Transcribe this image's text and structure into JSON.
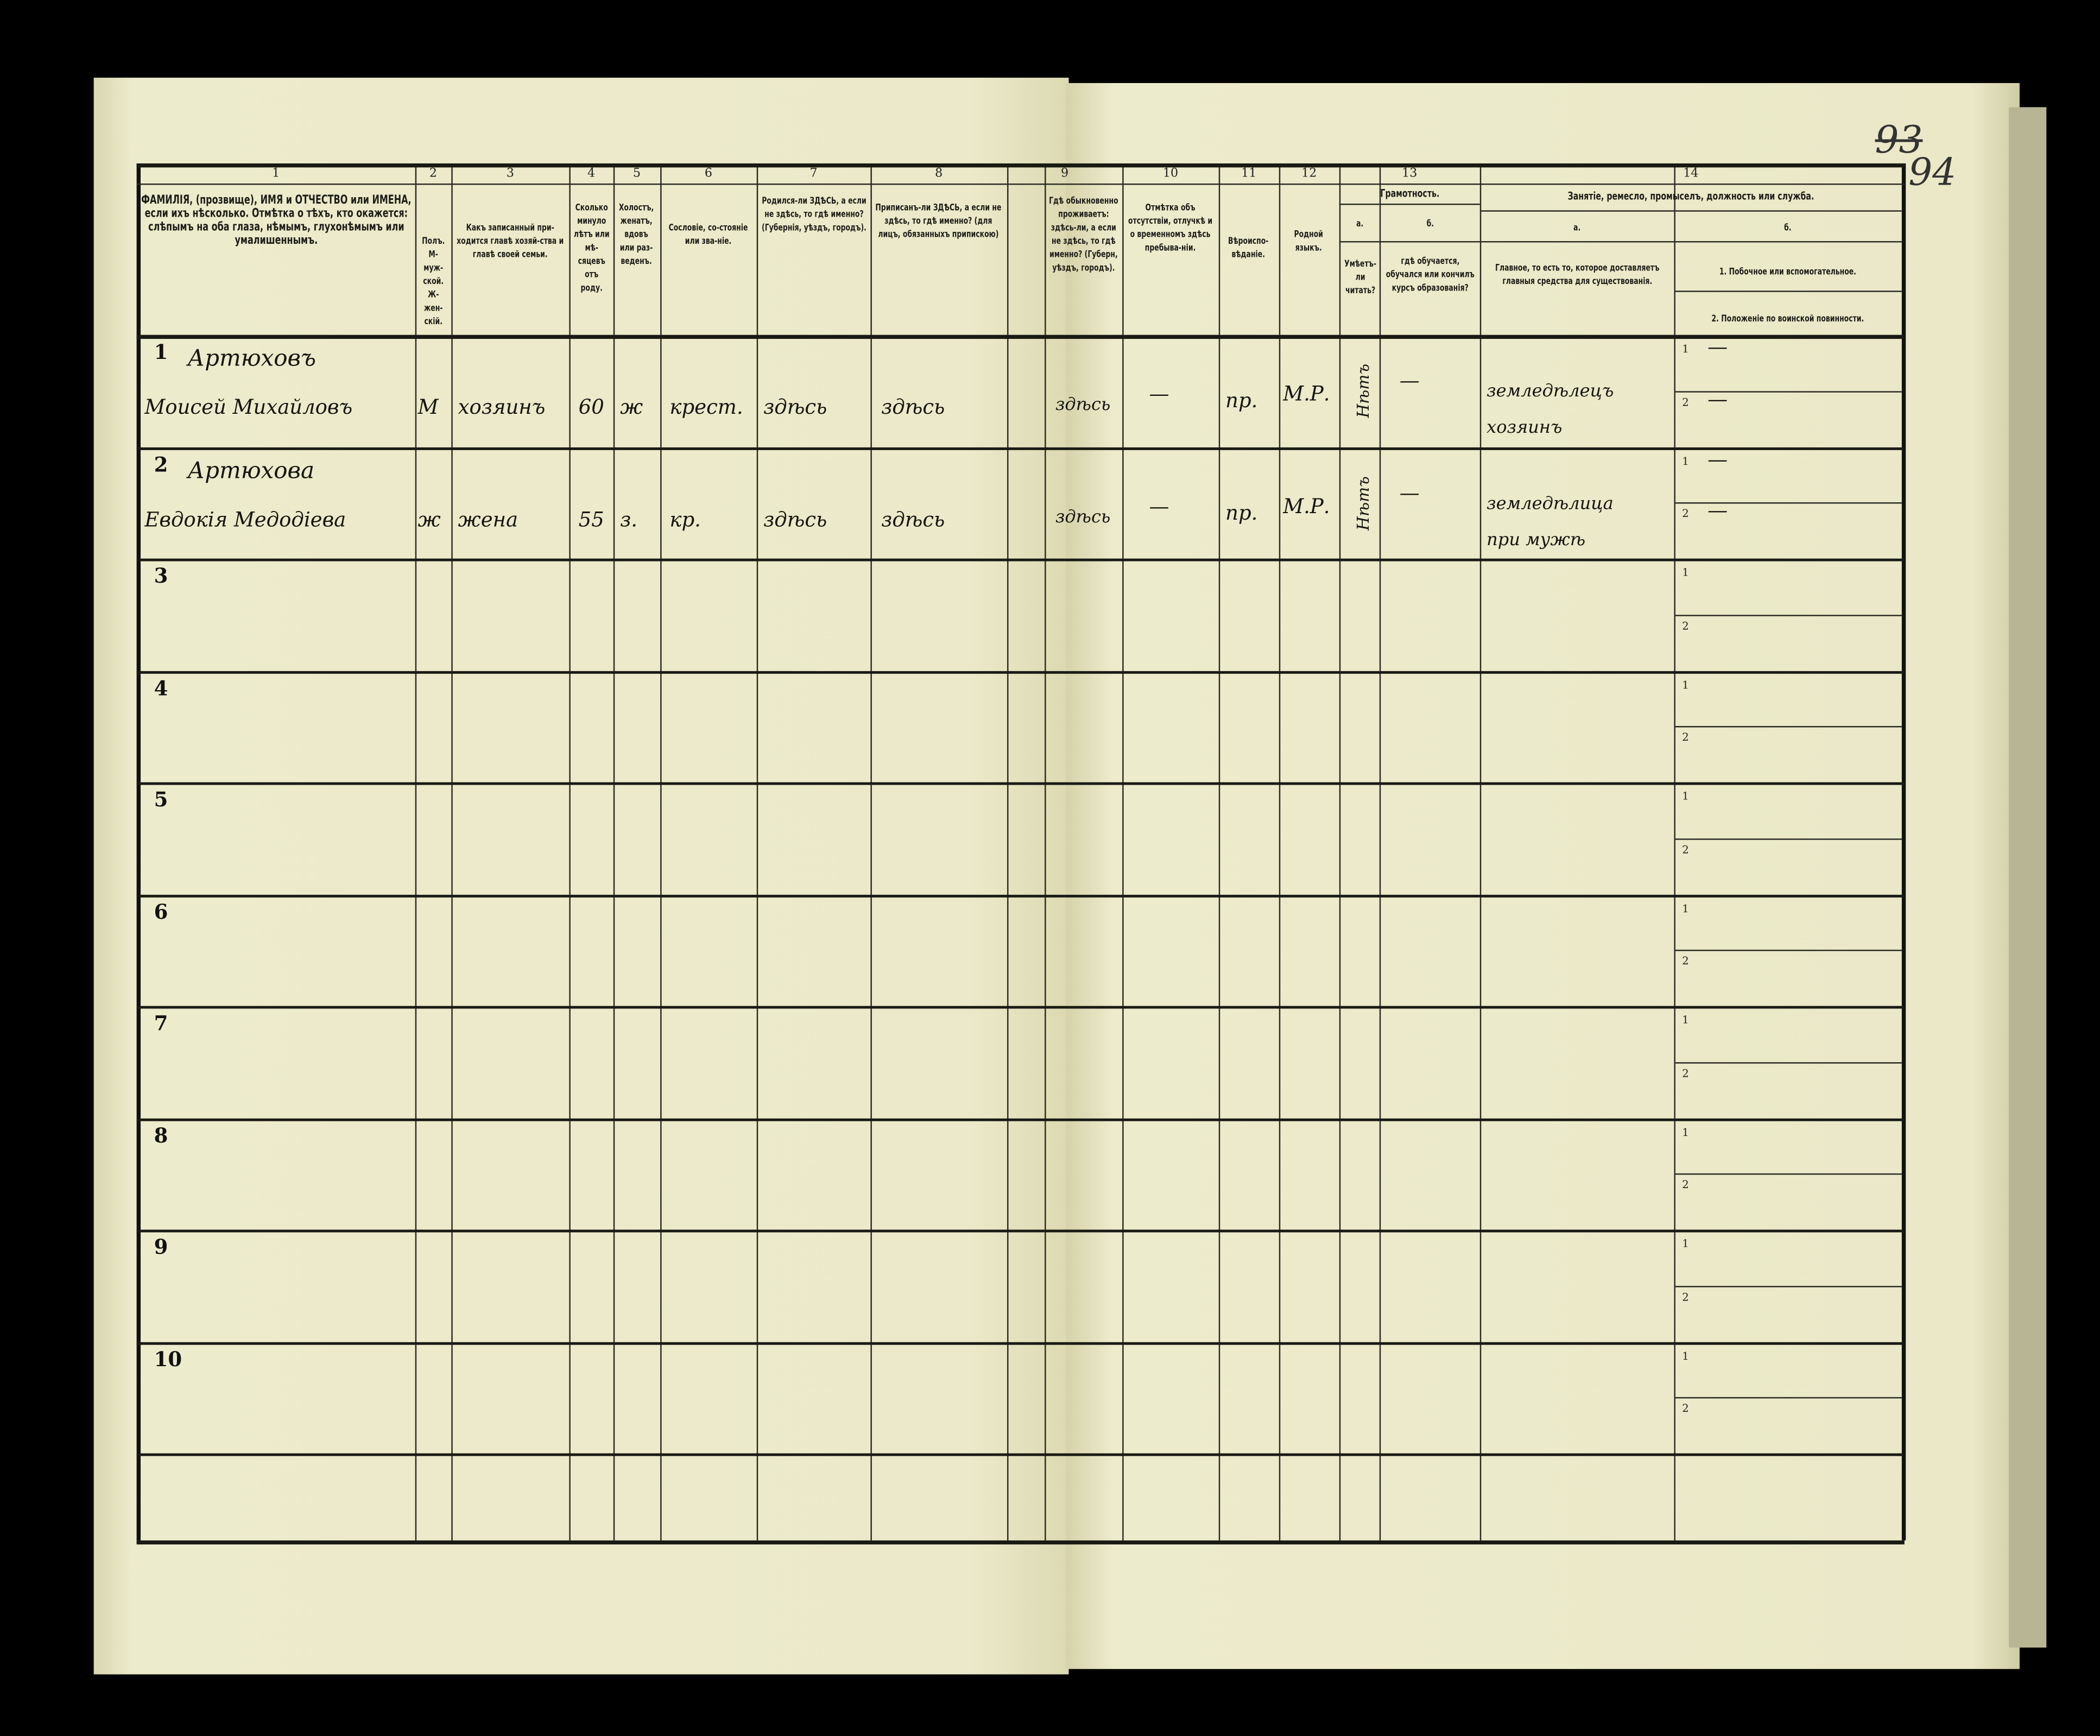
{
  "page_number": {
    "crossed": "93",
    "current": "94"
  },
  "columns": [
    {
      "num": "1",
      "text": "ФАМИЛІЯ, (прозвище), ИМЯ и ОТЧЕСТВО или ИМЕНА, если ихъ нѣсколько. Отмѣтка о тѣхъ, кто окажется: слѣпымъ на оба глаза, нѣмымъ, глухонѣмымъ или умалишеннымъ."
    },
    {
      "num": "2",
      "text": "Полъ. М-муж-ской. Ж-жен-скій."
    },
    {
      "num": "3",
      "text": "Какъ записанный при-ходится главѣ хозяй-ства и главѣ своей семьи."
    },
    {
      "num": "4",
      "text": "Сколько минуло лѣтъ или мѣ-сяцевъ отъ роду."
    },
    {
      "num": "5",
      "text": "Холостъ, женатъ, вдовъ или раз-веденъ."
    },
    {
      "num": "6",
      "text": "Сословіе, со-стояніе или зва-ніе."
    },
    {
      "num": "7",
      "text": "Родился-ли ЗДѢСЬ, а если не здѣсь, то гдѣ именно? (Губернія, уѣздъ, городъ)."
    },
    {
      "num": "8",
      "text": "Приписанъ-ли ЗДѢСЬ, а если не здѣсь, то гдѣ именно? (для лицъ, обязанныхъ припискою)"
    },
    {
      "num": "9",
      "text": "Гдѣ обыкновенно проживаетъ: здѣсь-ли, а если не здѣсь, то гдѣ именно? (Губерн, уѣздъ, городъ)."
    },
    {
      "num": "10",
      "text": "Отмѣтка объ отсутствіи, отлучкѣ и о временномъ здѣсь пребыва-ніи."
    },
    {
      "num": "11",
      "text": "Вѣроиспо-вѣданіе."
    },
    {
      "num": "12",
      "text": "Родной языкъ."
    }
  ],
  "col13": {
    "num": "13",
    "title": "Грамотность.",
    "a_label": "а.",
    "a_text": "Умѣетъ-ли читать?",
    "b_label": "б.",
    "b_text": "гдѣ обучается, обучался или кончилъ курсъ образованія?"
  },
  "col14": {
    "num": "14",
    "title": "Занятіе, ремесло, промыселъ, должность или служба.",
    "a_label": "а.",
    "a_text": "Главное, то есть то, которое доставляетъ главныя средства для существованія.",
    "b_label": "б.",
    "b1_text": "1. Побочное или вспомогательное.",
    "b2_text": "2. Положеніе по воинской повинности."
  },
  "rows": [
    {
      "n": "1",
      "surname": "Артюховъ",
      "name": "Моисей Михайловъ",
      "sex": "М",
      "relation": "хозяинъ",
      "age": "60",
      "marital": "ж",
      "estate": "крест.",
      "born": "здѣсь",
      "registered": "здѣсь",
      "resides": "здѣсь",
      "absence": "—",
      "religion": "пр.",
      "language": "М.Р.",
      "literate": "Нѣтъ",
      "schooling": "—",
      "occupation_1": "земледѣлецъ",
      "occupation_2": "хозяинъ",
      "side_1": "—",
      "side_2": "—"
    },
    {
      "n": "2",
      "surname": "Артюхова",
      "name": "Евдокія Медодіева",
      "sex": "ж",
      "relation": "жена",
      "age": "55",
      "marital": "з.",
      "estate": "кр.",
      "born": "здѣсь",
      "registered": "здѣсь",
      "resides": "здѣсь",
      "absence": "—",
      "religion": "пр.",
      "language": "М.Р.",
      "literate": "Нѣтъ",
      "schooling": "—",
      "occupation_1": "земледѣлица",
      "occupation_2": "при мужѣ",
      "side_1": "—",
      "side_2": "—"
    },
    {
      "n": "3"
    },
    {
      "n": "4"
    },
    {
      "n": "5"
    },
    {
      "n": "6"
    },
    {
      "n": "7"
    },
    {
      "n": "8"
    },
    {
      "n": "9"
    },
    {
      "n": "10"
    }
  ],
  "sub_numbers": [
    "1",
    "2"
  ]
}
